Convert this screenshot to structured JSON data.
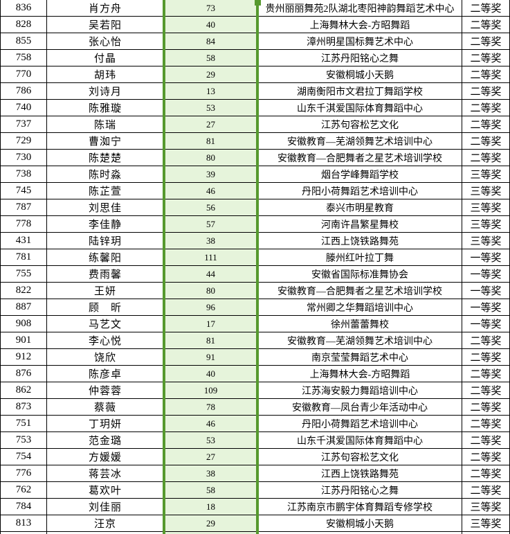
{
  "colors": {
    "grid_line": "#000000",
    "selection_border_green": "#56992e",
    "selected_column_fill": "#e6f4db",
    "text": "#000000",
    "background": "#ffffff"
  },
  "table": {
    "columns": [
      "entry_number",
      "name",
      "score",
      "organization",
      "award"
    ],
    "rows": [
      {
        "id": "836",
        "name": "肖方舟",
        "score": "73",
        "org": "贵州丽丽舞苑2队湖北枣阳神韵舞蹈艺术中心",
        "award": "二等奖"
      },
      {
        "id": "828",
        "name": "吴若阳",
        "score": "40",
        "org": "上海舞林大会-方昭舞蹈",
        "award": "二等奖"
      },
      {
        "id": "855",
        "name": "张心怡",
        "score": "84",
        "org": "漳州明星国标舞艺术中心",
        "award": "二等奖"
      },
      {
        "id": "758",
        "name": "付晶",
        "score": "58",
        "org": "江苏丹阳铭心之舞",
        "award": "二等奖"
      },
      {
        "id": "770",
        "name": "胡玮",
        "score": "29",
        "org": "安徽桐城小天鹅",
        "award": "二等奖"
      },
      {
        "id": "786",
        "name": "刘诗月",
        "score": "13",
        "org": "湖南衡阳市文君拉丁舞蹈学校",
        "award": "二等奖"
      },
      {
        "id": "740",
        "name": "陈雅璇",
        "score": "53",
        "org": "山东千淇爱国际体育舞蹈中心",
        "award": "二等奖"
      },
      {
        "id": "737",
        "name": "陈瑞",
        "score": "27",
        "org": "江苏句容松艺文化",
        "award": "二等奖"
      },
      {
        "id": "729",
        "name": "曹洳宁",
        "score": "81",
        "org": "安徽教育—芜湖领舞艺术培训中心",
        "award": "二等奖"
      },
      {
        "id": "730",
        "name": "陈楚楚",
        "score": "80",
        "org": "安徽教育—合肥舞者之星艺术培训学校",
        "award": "二等奖"
      },
      {
        "id": "738",
        "name": "陈时淼",
        "score": "39",
        "org": "烟台学峰舞蹈学校",
        "award": "三等奖"
      },
      {
        "id": "745",
        "name": "陈芷萱",
        "score": "46",
        "org": "丹阳小荷舞蹈艺术培训中心",
        "award": "三等奖"
      },
      {
        "id": "787",
        "name": "刘思佳",
        "score": "56",
        "org": "泰兴市明星教育",
        "award": "三等奖"
      },
      {
        "id": "778",
        "name": "李佳静",
        "score": "57",
        "org": "河南许昌繁星舞校",
        "award": "三等奖"
      },
      {
        "id": "431",
        "name": "陆锌玥",
        "score": "38",
        "org": "江西上饶铁路舞苑",
        "award": "三等奖"
      },
      {
        "id": "781",
        "name": "练馨阳",
        "score": "111",
        "org": "滕州红叶拉丁舞",
        "award": "一等奖"
      },
      {
        "id": "755",
        "name": "费雨馨",
        "score": "44",
        "org": "安徽省国际标准舞协会",
        "award": "一等奖"
      },
      {
        "id": "822",
        "name": "王妍",
        "score": "80",
        "org": "安徽教育—合肥舞者之星艺术培训学校",
        "award": "一等奖"
      },
      {
        "id": "887",
        "name": "顾　昕",
        "score": "96",
        "org": "常州卿之华舞蹈培训中心",
        "award": "一等奖"
      },
      {
        "id": "908",
        "name": "马艺文",
        "score": "17",
        "org": "徐州蕾蕾舞校",
        "award": "一等奖"
      },
      {
        "id": "901",
        "name": "李心悦",
        "score": "81",
        "org": "安徽教育—芜湖领舞艺术培训中心",
        "award": "二等奖"
      },
      {
        "id": "912",
        "name": "饶欣",
        "score": "91",
        "org": "南京莹莹舞蹈艺术中心",
        "award": "二等奖"
      },
      {
        "id": "876",
        "name": "陈彦卓",
        "score": "40",
        "org": "上海舞林大会-方昭舞蹈",
        "award": "二等奖"
      },
      {
        "id": "862",
        "name": "仲蓉蓉",
        "score": "109",
        "org": "江苏海安毅力舞蹈培训中心",
        "award": "二等奖"
      },
      {
        "id": "873",
        "name": "蔡薇",
        "score": "78",
        "org": "安徽教育—凤台青少年活动中心",
        "award": "二等奖"
      },
      {
        "id": "751",
        "name": "丁玥妍",
        "score": "46",
        "org": "丹阳小荷舞蹈艺术培训中心",
        "award": "二等奖"
      },
      {
        "id": "753",
        "name": "范金璐",
        "score": "53",
        "org": "山东千淇爱国际体育舞蹈中心",
        "award": "二等奖"
      },
      {
        "id": "754",
        "name": "方媛媛",
        "score": "27",
        "org": "江苏句容松艺文化",
        "award": "二等奖"
      },
      {
        "id": "776",
        "name": "蒋芸冰",
        "score": "38",
        "org": "江西上饶铁路舞苑",
        "award": "二等奖"
      },
      {
        "id": "762",
        "name": "葛欢叶",
        "score": "58",
        "org": "江苏丹阳铭心之舞",
        "award": "二等奖"
      },
      {
        "id": "784",
        "name": "刘佳丽",
        "score": "18",
        "org": "江苏南京市鹏宇体育舞蹈专修学校",
        "award": "三等奖"
      },
      {
        "id": "813",
        "name": "汪京",
        "score": "29",
        "org": "安徽桐城小天鹅",
        "award": "三等奖"
      }
    ]
  }
}
